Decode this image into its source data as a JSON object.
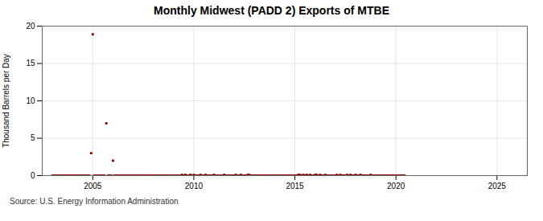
{
  "chart_data": {
    "type": "scatter",
    "title": "Monthly Midwest (PADD 2) Exports of MTBE",
    "ylabel": "Thousand Barrels per Day",
    "source": "Source: U.S. Energy Information Administration",
    "color": "#8b0000",
    "marker": "square",
    "grid": true,
    "xlim": [
      2002.5,
      2026.5
    ],
    "ylim": [
      0,
      20
    ],
    "xticks": [
      2005,
      2010,
      2015,
      2020,
      2025
    ],
    "yticks": [
      0,
      5,
      10,
      15,
      20
    ],
    "x": [
      2003.0,
      2003.08,
      2003.17,
      2003.25,
      2003.33,
      2003.42,
      2003.5,
      2003.58,
      2003.67,
      2003.75,
      2003.83,
      2003.92,
      2004.0,
      2004.08,
      2004.17,
      2004.25,
      2004.33,
      2004.42,
      2004.5,
      2004.58,
      2004.67,
      2004.75,
      2004.83,
      2004.92,
      2005.0,
      2005.08,
      2005.17,
      2005.25,
      2005.33,
      2005.42,
      2005.5,
      2005.58,
      2005.67,
      2005.75,
      2005.83,
      2005.92,
      2006.0,
      2006.08,
      2006.17,
      2006.25,
      2006.33,
      2006.42,
      2006.5,
      2006.58,
      2006.67,
      2006.75,
      2006.83,
      2006.92,
      2007.0,
      2007.08,
      2007.17,
      2007.25,
      2007.33,
      2007.42,
      2007.5,
      2007.58,
      2007.67,
      2007.75,
      2007.83,
      2007.92,
      2008.0,
      2008.08,
      2008.17,
      2008.25,
      2008.33,
      2008.42,
      2008.5,
      2008.58,
      2008.67,
      2008.75,
      2008.83,
      2008.92,
      2009.0,
      2009.08,
      2009.17,
      2009.25,
      2009.33,
      2009.42,
      2009.5,
      2009.58,
      2009.67,
      2009.75,
      2009.83,
      2009.92,
      2010.0,
      2010.08,
      2010.17,
      2010.25,
      2010.33,
      2010.42,
      2010.5,
      2010.58,
      2010.67,
      2010.75,
      2010.83,
      2010.92,
      2011.0,
      2011.08,
      2011.17,
      2011.25,
      2011.33,
      2011.42,
      2011.5,
      2011.58,
      2011.67,
      2011.75,
      2011.83,
      2011.92,
      2012.0,
      2012.08,
      2012.17,
      2012.25,
      2012.33,
      2012.42,
      2012.5,
      2012.58,
      2012.67,
      2012.75,
      2012.83,
      2012.92,
      2013.0,
      2013.08,
      2013.17,
      2013.25,
      2013.33,
      2013.42,
      2013.5,
      2013.58,
      2013.67,
      2013.75,
      2013.83,
      2013.92,
      2014.0,
      2014.08,
      2014.17,
      2014.25,
      2014.33,
      2014.42,
      2014.5,
      2014.58,
      2014.67,
      2014.75,
      2014.83,
      2014.92,
      2015.0,
      2015.08,
      2015.17,
      2015.25,
      2015.33,
      2015.42,
      2015.5,
      2015.58,
      2015.67,
      2015.75,
      2015.83,
      2015.92,
      2016.0,
      2016.08,
      2016.17,
      2016.25,
      2016.33,
      2016.42,
      2016.5,
      2016.58,
      2016.67,
      2016.75,
      2016.83,
      2016.92,
      2017.0,
      2017.08,
      2017.17,
      2017.25,
      2017.33,
      2017.42,
      2017.5,
      2017.58,
      2017.67,
      2017.75,
      2017.83,
      2017.92,
      2018.0,
      2018.08,
      2018.17,
      2018.25,
      2018.33,
      2018.42,
      2018.5,
      2018.58,
      2018.67,
      2018.75,
      2018.83,
      2018.92,
      2019.0,
      2019.08,
      2019.17,
      2019.25,
      2019.33,
      2019.42,
      2019.5,
      2019.58,
      2019.67,
      2019.75,
      2019.83,
      2019.92,
      2020.0,
      2020.08,
      2020.17,
      2020.25,
      2020.33,
      2020.42
    ],
    "values": [
      0,
      0,
      0,
      0,
      0,
      0,
      0,
      0,
      0,
      0,
      0,
      0,
      0,
      0,
      0,
      0,
      0,
      0,
      0,
      0,
      0,
      0,
      0,
      3.0,
      18.9,
      0,
      0,
      0,
      0,
      0,
      0,
      0,
      7.0,
      0,
      0,
      0,
      2.0,
      0,
      0,
      0,
      0,
      0,
      0,
      0,
      0,
      0,
      0,
      0,
      0,
      0,
      0,
      0,
      0,
      0,
      0,
      0,
      0,
      0,
      0,
      0,
      0,
      0,
      0,
      0,
      0,
      0,
      0,
      0,
      0,
      0,
      0,
      0,
      0,
      0,
      0,
      0,
      0,
      0.1,
      0,
      0.1,
      0,
      0,
      0.1,
      0,
      0.1,
      0,
      0,
      0,
      0.1,
      0,
      0,
      0.1,
      0,
      0,
      0,
      0,
      0.1,
      0,
      0,
      0,
      0,
      0,
      0.1,
      0,
      0,
      0,
      0,
      0,
      0,
      0.1,
      0,
      0,
      0.1,
      0,
      0,
      0,
      0.1,
      0.1,
      0,
      0,
      0,
      0,
      0,
      0,
      0,
      0,
      0,
      0,
      0,
      0,
      0,
      0,
      0,
      0,
      0,
      0,
      0,
      0,
      0,
      0,
      0,
      0,
      0,
      0,
      0,
      0,
      0.1,
      0.1,
      0,
      0.1,
      0,
      0.1,
      0,
      0.1,
      0,
      0,
      0.1,
      0.1,
      0,
      0.1,
      0,
      0,
      0.1,
      0,
      0,
      0,
      0,
      0,
      0,
      0.1,
      0,
      0.1,
      0,
      0,
      0,
      0.1,
      0,
      0.1,
      0,
      0,
      0.1,
      0,
      0,
      0.1,
      0,
      0,
      0,
      0,
      0,
      0.1,
      0,
      0,
      0,
      0,
      0,
      0,
      0,
      0,
      0,
      0,
      0,
      0,
      0,
      0,
      0,
      0,
      0,
      0,
      0,
      0
    ]
  }
}
